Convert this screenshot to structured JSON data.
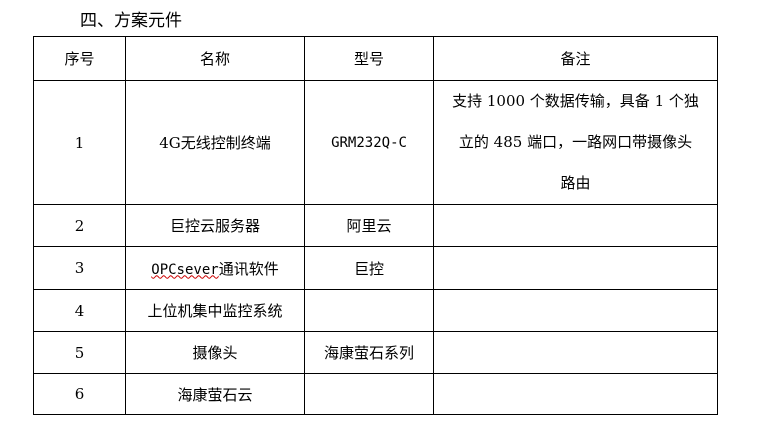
{
  "title": "四、方案元件",
  "headers": [
    "序号",
    "名称",
    "型号",
    "备注"
  ],
  "rows": [
    {
      "no": "1",
      "name": "4G无线控制终端",
      "model": "GRM232Q-C",
      "note_lines": [
        "支持 1000 个数据传输，具备 1 个独",
        "立的 485 端口，一路网口带摄像头",
        "路由"
      ]
    },
    {
      "no": "2",
      "name": "巨控云服务器",
      "model": "阿里云",
      "note_lines": []
    },
    {
      "no": "3",
      "name_prefix": "OPCsever",
      "name": "通讯软件",
      "model": "巨控",
      "note_lines": []
    },
    {
      "no": "4",
      "name": "上位机集中监控系统",
      "model": "",
      "note_lines": []
    },
    {
      "no": "5",
      "name": "摄像头",
      "model": "海康萤石系列",
      "note_lines": []
    },
    {
      "no": "6",
      "name": "海康萤石云",
      "model": "",
      "note_lines": []
    }
  ]
}
